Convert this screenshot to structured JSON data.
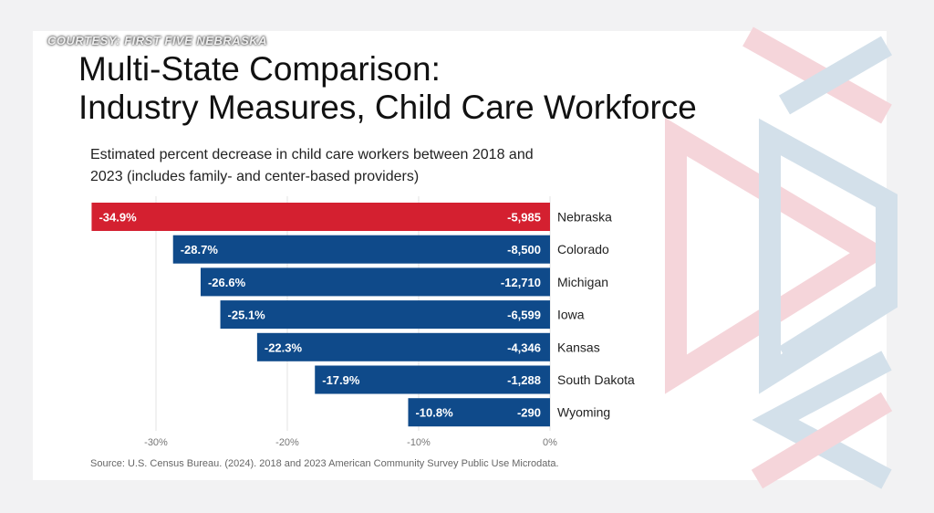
{
  "courtesy": "COURTESY:  FIRST FIVE NEBRASKA",
  "title_line1": "Multi-State Comparison:",
  "title_line2": "Industry Measures, Child Care Workforce",
  "subtitle_line1": "Estimated percent decrease in child care workers between 2018 and",
  "subtitle_line2": "2023 (includes family- and center-based providers)",
  "source": "Source: U.S. Census Bureau. (2024). 2018 and 2023 American Community Survey Public Use Microdata.",
  "colors": {
    "highlight": "#d42030",
    "bar": "#0f4a8a",
    "deco_red": "#f5d5da",
    "deco_blue": "#d3e0ea"
  },
  "chart_data": {
    "type": "bar",
    "orientation": "horizontal",
    "categories": [
      "Nebraska",
      "Colorado",
      "Michigan",
      "Iowa",
      "Kansas",
      "South Dakota",
      "Wyoming"
    ],
    "values": [
      -34.9,
      -28.7,
      -26.6,
      -25.1,
      -22.3,
      -17.9,
      -10.8
    ],
    "value_labels": [
      "-34.9%",
      "-28.7%",
      "-26.6%",
      "-25.1%",
      "-22.3%",
      "-17.9%",
      "-10.8%"
    ],
    "count_labels": [
      "-5,985",
      "-8,500",
      "-12,710",
      "-6,599",
      "-4,346",
      "-1,288",
      "-290"
    ],
    "highlight": "Nebraska",
    "xlim": [
      -35,
      0
    ],
    "xticks": [
      -30,
      -20,
      -10,
      0
    ],
    "xtick_labels": [
      "-30%",
      "-20%",
      "-10%",
      "0%"
    ],
    "grid": true
  }
}
